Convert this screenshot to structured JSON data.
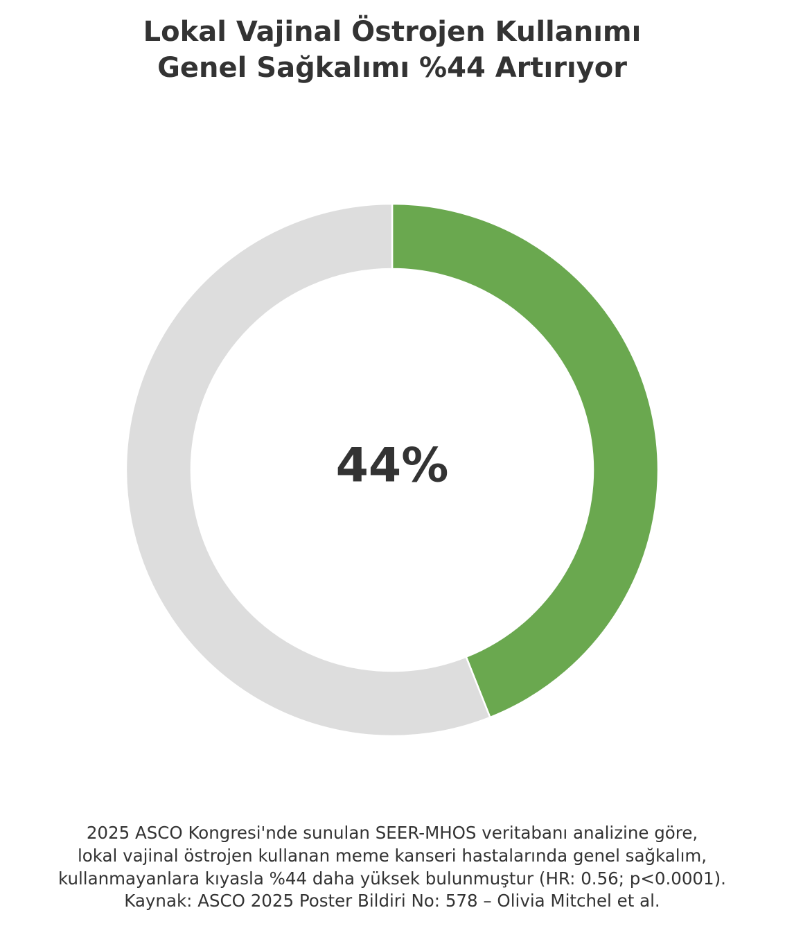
{
  "chart_data": {
    "type": "donut",
    "title": [
      "Lokal Vajinal Östrojen Kullanımı",
      "Genel Sağkalımı %44 Artırıyor"
    ],
    "values": [
      44,
      56
    ],
    "colors": [
      "#6aa84f",
      "#dddddd"
    ],
    "center_label": "44%",
    "footnote": [
      "2025 ASCO Kongresi'nde sunulan SEER-MHOS veritabanı analizine göre,",
      "lokal vajinal östrojen kullanan meme kanseri hastalarında genel sağkalım,",
      "kullanmayanlara kıyasla %44 daha yüksek bulunmuştur (HR: 0.56; p<0.0001).",
      "Kaynak: ASCO 2025 Poster Bildiri No: 578 – Olivia Mitchel et al."
    ]
  }
}
